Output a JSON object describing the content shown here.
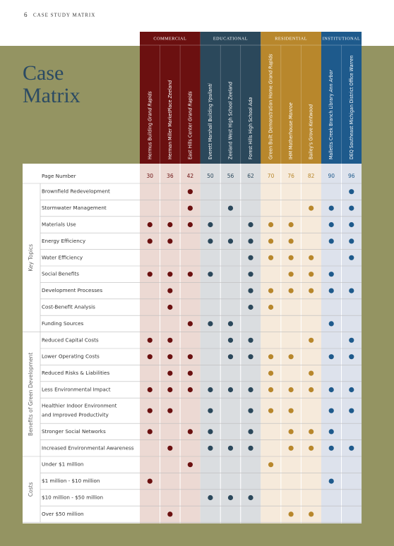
{
  "header": {
    "page": "6",
    "section": "CASE STUDY MATRIX"
  },
  "title": [
    "Case",
    "Matrix"
  ],
  "page_number_label": "Page Number",
  "groups": [
    {
      "label": "COMMERCIAL",
      "color": "#6b1010",
      "light": "#ecd9d3",
      "columns": [
        {
          "name": "Hermus Building",
          "city": "Grand Rapids",
          "page": 30
        },
        {
          "name": "Herman Miller MarketPlace",
          "city": "Zeeland",
          "page": 36
        },
        {
          "name": "East Hills Center",
          "city": "Grand Rapids",
          "page": 42
        }
      ]
    },
    {
      "label": "EDUCATIONAL",
      "color": "#2b485b",
      "light": "#dadde0",
      "columns": [
        {
          "name": "Everett Marshall Building",
          "city": "Ypsilanti",
          "page": 50
        },
        {
          "name": "Zeeland West High School",
          "city": "Zeeland",
          "page": 56
        },
        {
          "name": "Forest Hills High School",
          "city": "Ada",
          "page": 62
        }
      ]
    },
    {
      "label": "RESIDENTIAL",
      "color": "#b8872c",
      "light": "#f6eadb",
      "columns": [
        {
          "name": "Green Built Demonstration Home",
          "city": "Grand Rapids",
          "page": 70
        },
        {
          "name": "IHM Motherhouse",
          "city": "Monroe",
          "page": 76
        },
        {
          "name": "Bailey's Grove",
          "city": "Kentwood",
          "page": 82
        }
      ]
    },
    {
      "label": "INSTITUTIONAL",
      "color": "#1e5a8c",
      "light": "#dde2ec",
      "columns": [
        {
          "name": "Malletts Creek Branch Library",
          "city": "Ann Arbor",
          "page": 90
        },
        {
          "name": "DEQ Southeast Michigan District Office",
          "city": "Warren",
          "page": 96
        }
      ]
    }
  ],
  "sections": [
    {
      "label": "Key Topics",
      "rows": [
        {
          "label": [
            "Brownfield Redevelopment"
          ],
          "dots": [
            2,
            10
          ]
        },
        {
          "label": [
            "Stormwater Management"
          ],
          "dots": [
            2,
            4,
            8,
            9,
            10
          ]
        },
        {
          "label": [
            "Materials Use"
          ],
          "dots": [
            0,
            1,
            2,
            3,
            5,
            6,
            7,
            9,
            10
          ]
        },
        {
          "label": [
            "Energy Efficiency"
          ],
          "dots": [
            0,
            1,
            3,
            4,
            5,
            6,
            7,
            9,
            10
          ]
        },
        {
          "label": [
            "Water Efficiency"
          ],
          "dots": [
            5,
            6,
            7,
            8,
            10
          ]
        },
        {
          "label": [
            "Social Benefits"
          ],
          "dots": [
            0,
            1,
            2,
            3,
            5,
            7,
            8,
            9
          ]
        },
        {
          "label": [
            "Development Processes"
          ],
          "dots": [
            1,
            5,
            6,
            7,
            8,
            9,
            10
          ]
        },
        {
          "label": [
            "Cost-Benefit Analysis"
          ],
          "dots": [
            1,
            5,
            6
          ]
        },
        {
          "label": [
            "Funding Sources"
          ],
          "dots": [
            2,
            3,
            4,
            9
          ]
        }
      ]
    },
    {
      "label": "Benefits of Green Development",
      "rows": [
        {
          "label": [
            "Reduced Capital Costs"
          ],
          "dots": [
            0,
            1,
            4,
            5,
            8,
            10
          ]
        },
        {
          "label": [
            "Lower Operating Costs"
          ],
          "dots": [
            0,
            1,
            2,
            4,
            5,
            6,
            7,
            9,
            10
          ]
        },
        {
          "label": [
            "Reduced Risks & Liabilities"
          ],
          "dots": [
            1,
            2,
            6,
            8
          ]
        },
        {
          "label": [
            "Less Environmental Impact"
          ],
          "dots": [
            0,
            1,
            2,
            3,
            4,
            5,
            6,
            7,
            8,
            9,
            10
          ]
        },
        {
          "label": [
            "Healthier Indoor Environment",
            "and Improved Productivity"
          ],
          "dots": [
            0,
            1,
            3,
            5,
            6,
            7,
            9,
            10
          ]
        },
        {
          "label": [
            "Stronger Social Networks"
          ],
          "dots": [
            0,
            2,
            3,
            5,
            7,
            8,
            9
          ]
        },
        {
          "label": [
            "Increased Environmental Awareness"
          ],
          "dots": [
            1,
            3,
            4,
            5,
            7,
            8,
            9,
            10
          ]
        }
      ]
    },
    {
      "label": "Costs",
      "rows": [
        {
          "label": [
            "Under $1 million"
          ],
          "dots": [
            2,
            6
          ]
        },
        {
          "label": [
            "$1 million - $10 million"
          ],
          "dots": [
            0,
            9
          ]
        },
        {
          "label": [
            "$10 million - $50 million"
          ],
          "dots": [
            3,
            4,
            5
          ]
        },
        {
          "label": [
            "Over $50 million"
          ],
          "dots": [
            1,
            7,
            8
          ]
        }
      ]
    }
  ]
}
